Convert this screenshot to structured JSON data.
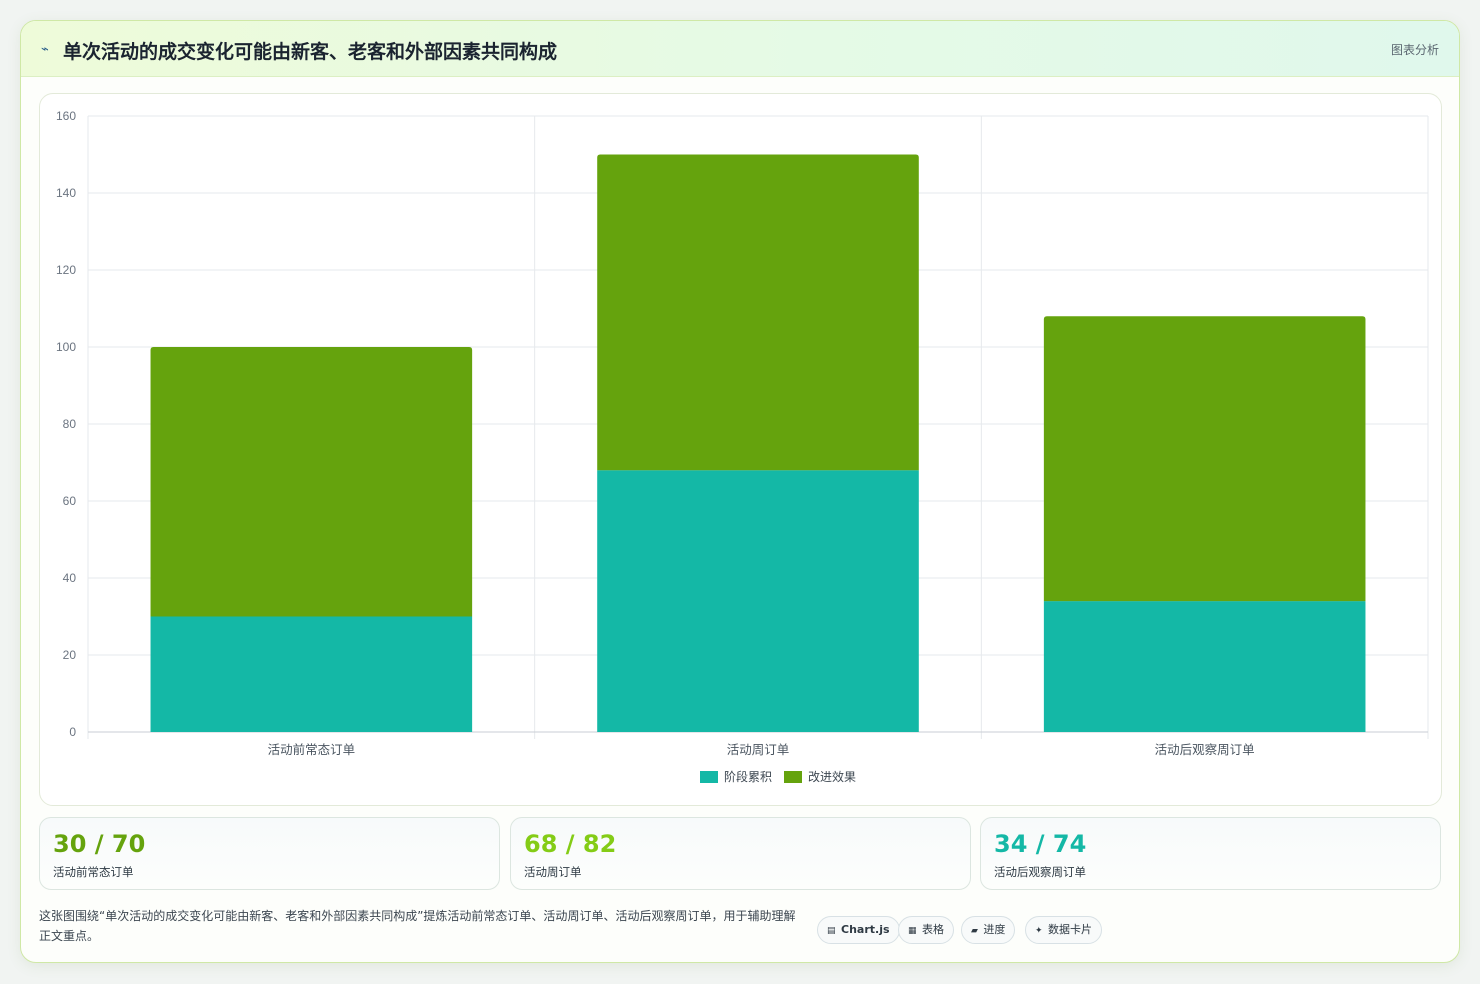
{
  "header": {
    "icon": "chart-line-icon",
    "title": "单次活动的成交变化可能由新客、老客和外部因素共同构成",
    "right_label": "图表分析"
  },
  "chart_data": {
    "type": "bar",
    "stacked": true,
    "categories": [
      "活动前常态订单",
      "活动周订单",
      "活动后观察周订单"
    ],
    "series": [
      {
        "name": "阶段累积",
        "color": "#14b8a6",
        "values": [
          30,
          68,
          34
        ]
      },
      {
        "name": "改进效果",
        "color": "#65a30d",
        "values": [
          70,
          82,
          74
        ]
      }
    ],
    "ylim": [
      0,
      160
    ],
    "yticks": [
      0,
      20,
      40,
      60,
      80,
      100,
      120,
      140,
      160
    ],
    "grid": true,
    "legend": "bottom"
  },
  "stats": [
    {
      "value": "30 / 70",
      "label": "活动前常态订单",
      "color": "#65a30d"
    },
    {
      "value": "68 / 82",
      "label": "活动周订单",
      "color": "#84cc16"
    },
    {
      "value": "34 / 74",
      "label": "活动后观察周订单",
      "color": "#14b8a6"
    }
  ],
  "description": "这张图围绕“单次活动的成交变化可能由新客、老客和外部因素共同构成”提炼活动前常态订单、活动周订单、活动后观察周订单，用于辅助理解正文重点。",
  "tags": [
    {
      "icon": "chart-icon",
      "glyph": "▤",
      "label": "Chart.js"
    },
    {
      "icon": "table-icon",
      "glyph": "▦",
      "label": "表格"
    },
    {
      "icon": "progress-icon",
      "glyph": "▰",
      "label": "进度"
    },
    {
      "icon": "sparkle-icon",
      "glyph": "✦",
      "label": "数据卡片"
    }
  ]
}
